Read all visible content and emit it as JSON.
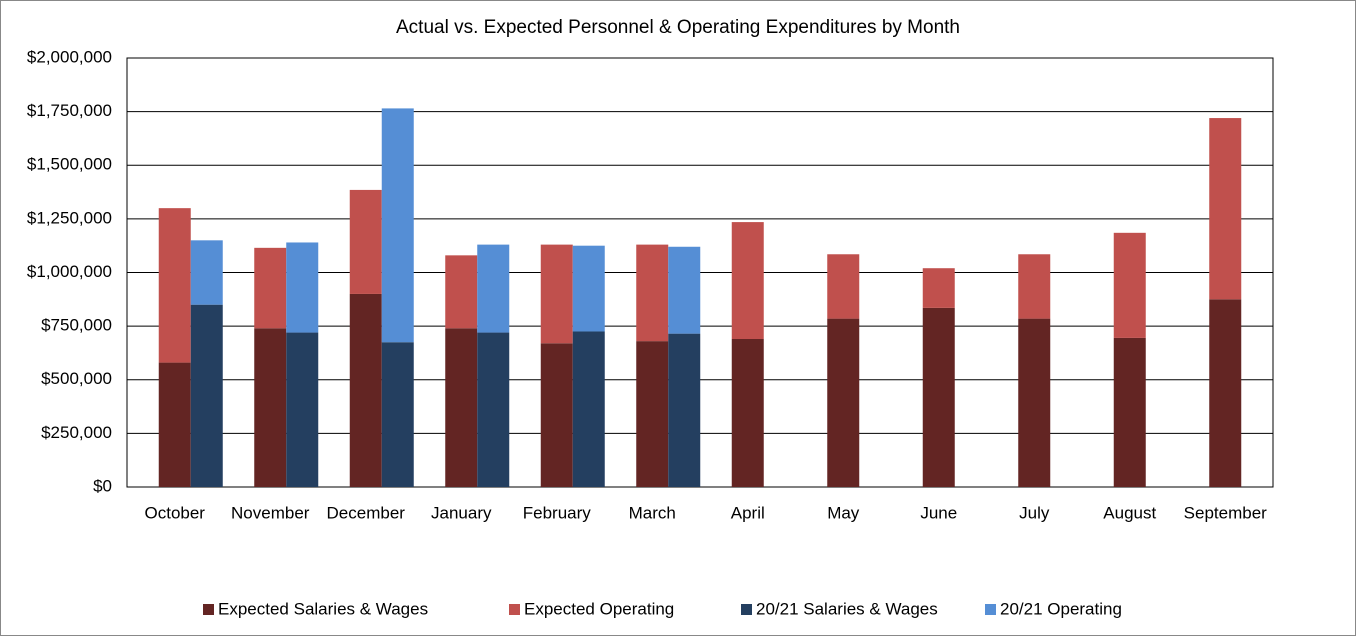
{
  "chart_data": {
    "type": "bar",
    "title": "Actual vs. Expected Personnel & Operating Expenditures by Month",
    "categories": [
      "October",
      "November",
      "December",
      "January",
      "February",
      "March",
      "April",
      "May",
      "June",
      "July",
      "August",
      "September"
    ],
    "series": [
      {
        "name": "Expected Salaries & Wages",
        "color": "#632523",
        "values": [
          580000,
          740000,
          900000,
          740000,
          670000,
          680000,
          690000,
          785000,
          835000,
          785000,
          695000,
          875000
        ]
      },
      {
        "name": "Expected Operating",
        "color": "#c0504d",
        "values": [
          720000,
          375000,
          485000,
          340000,
          460000,
          450000,
          545000,
          300000,
          185000,
          300000,
          490000,
          845000
        ]
      },
      {
        "name": "20/21 Salaries & Wages",
        "color": "#243f60",
        "values": [
          850000,
          720000,
          675000,
          720000,
          725000,
          715000,
          null,
          null,
          null,
          null,
          null,
          null
        ]
      },
      {
        "name": "20/21 Operating",
        "color": "#558ed5",
        "values": [
          300000,
          420000,
          1090000,
          410000,
          400000,
          405000,
          null,
          null,
          null,
          null,
          null,
          null
        ]
      }
    ],
    "ylim": [
      0,
      2000000
    ],
    "yticks": [
      {
        "value": 0,
        "label": "$0"
      },
      {
        "value": 250000,
        "label": "$250,000"
      },
      {
        "value": 500000,
        "label": "$500,000"
      },
      {
        "value": 750000,
        "label": "$750,000"
      },
      {
        "value": 1000000,
        "label": "$1,000,000"
      },
      {
        "value": 1250000,
        "label": "$1,250,000"
      },
      {
        "value": 1500000,
        "label": "$1,500,000"
      },
      {
        "value": 1750000,
        "label": "$1,750,000"
      },
      {
        "value": 2000000,
        "label": "$2,000,000"
      }
    ],
    "grid": true,
    "legend": "bottom"
  }
}
